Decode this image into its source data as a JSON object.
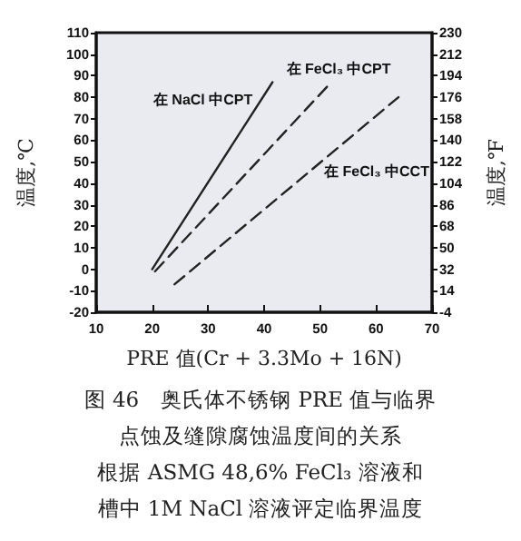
{
  "chart_data": {
    "type": "line",
    "xlabel": "PRE 值(Cr + 3.3Mo + 16N)",
    "ylabel": "温度,℃",
    "y2label": "温度,℉",
    "xlim": [
      10,
      70
    ],
    "xticks": [
      10,
      20,
      30,
      40,
      50,
      60,
      70
    ],
    "ylim": [
      -20,
      110
    ],
    "yticks": [
      -20,
      -10,
      0,
      10,
      20,
      30,
      40,
      50,
      60,
      70,
      80,
      90,
      100,
      110
    ],
    "y2lim": [
      -4,
      230
    ],
    "y2ticks": [
      -4,
      14,
      32,
      50,
      68,
      86,
      104,
      122,
      140,
      158,
      176,
      194,
      212,
      230
    ],
    "series": [
      {
        "name": "在 NaCl 中CPT",
        "color": "#222222",
        "line_style": "solid",
        "x": [
          20,
          41.5
        ],
        "values": [
          0,
          87
        ]
      },
      {
        "name": "在 FeCl₃ 中CPT",
        "color": "#222222",
        "line_style": "dashed",
        "x": [
          20.5,
          52
        ],
        "values": [
          -1,
          87
        ]
      },
      {
        "name": "在 FeCl₃ 中CCT",
        "color": "#222222",
        "line_style": "dashed",
        "x": [
          24,
          64
        ],
        "values": [
          -7,
          80
        ]
      }
    ],
    "annotations": [
      "图 46　奥氏体不锈钢 PRE 值与临界",
      "点蚀及缝隙腐蚀温度间的关系",
      "根据 ASMG 48,6% FeCl₃ 溶液和",
      "槽中 1M NaCl 溶液评定临界温度"
    ],
    "grid": false,
    "legend": false,
    "marker": "none"
  }
}
